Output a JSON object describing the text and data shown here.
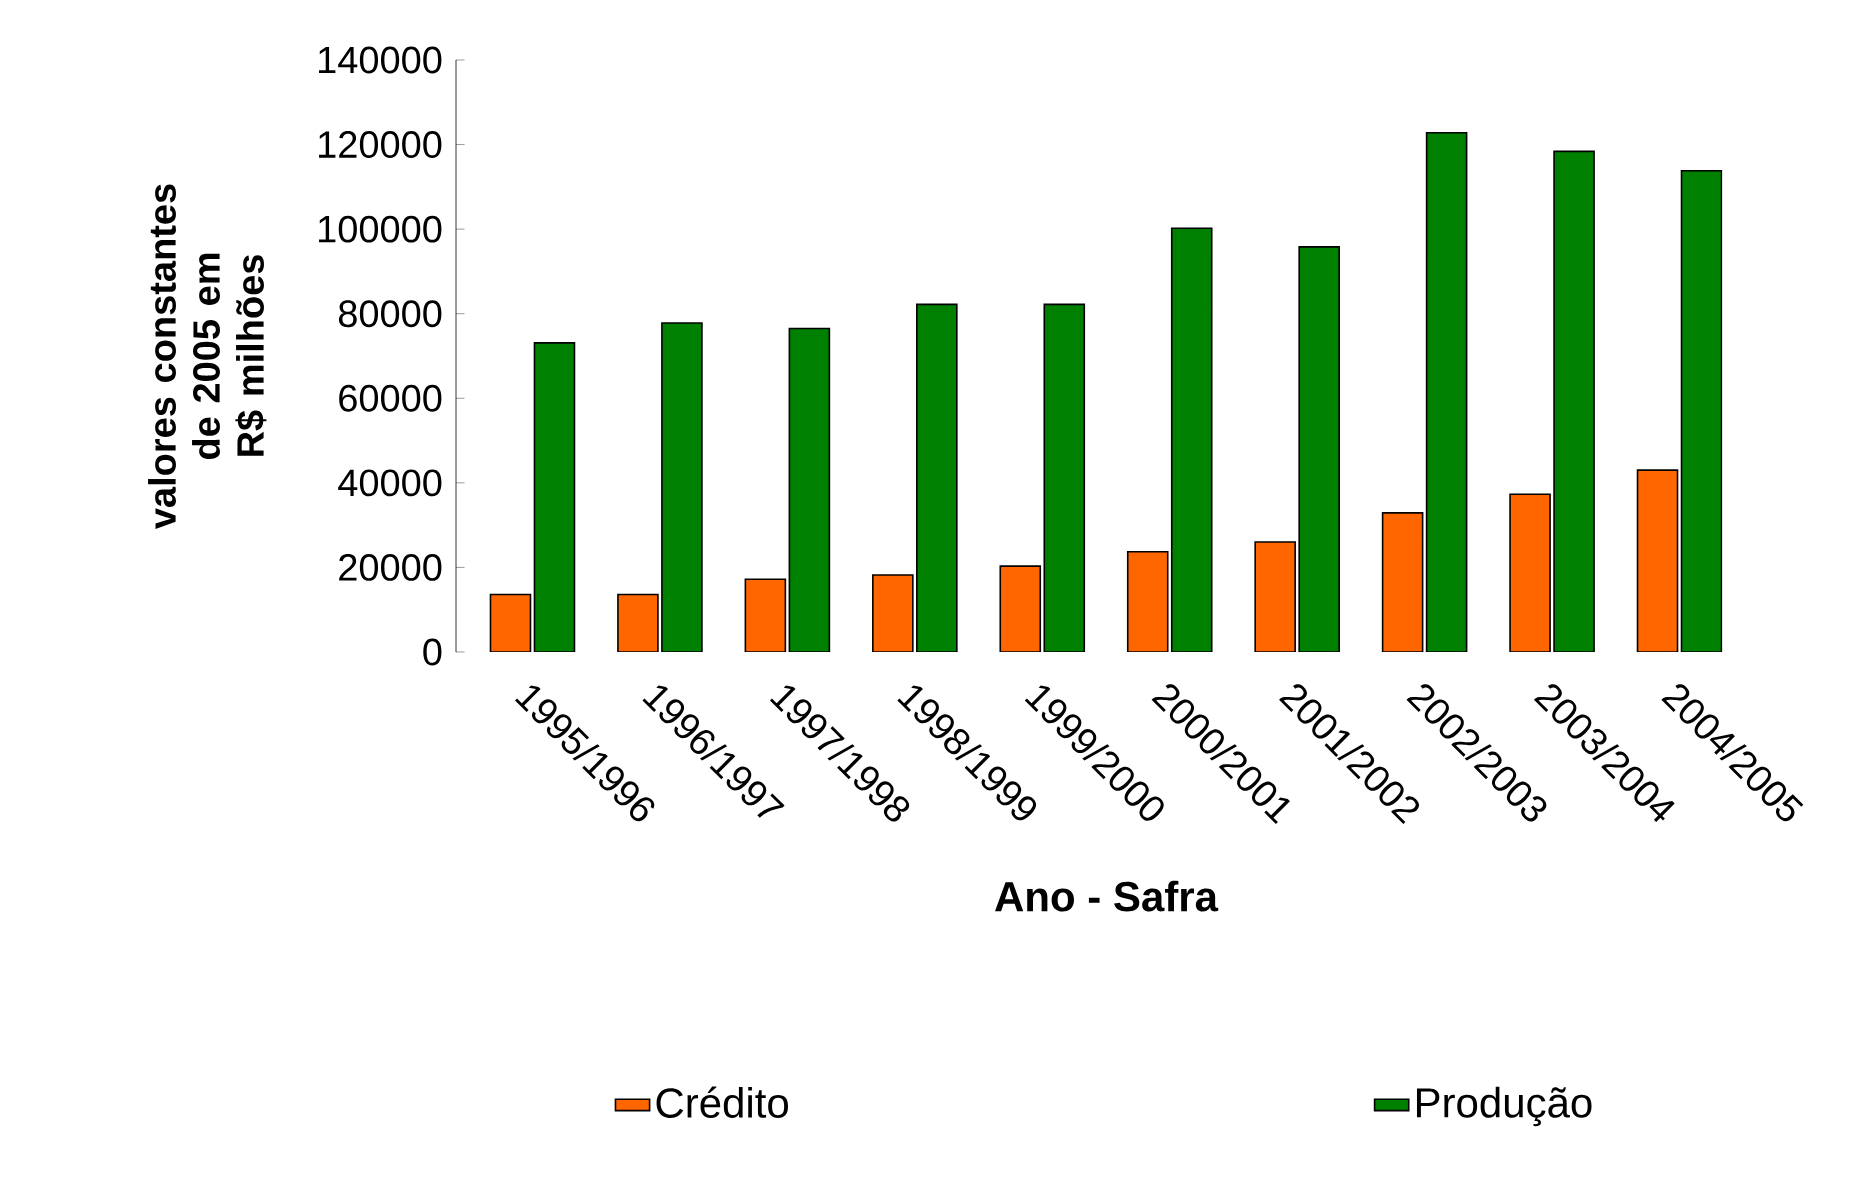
{
  "chart_data": {
    "type": "bar",
    "xlabel": "Ano - Safra",
    "ylabel": "valores constantes de 2005 em R$ milhões",
    "categories": [
      "1995/1996",
      "1996/1997",
      "1997/1998",
      "1998/1999",
      "1999/2000",
      "2000/2001",
      "2001/2002",
      "2002/2003",
      "2003/2004",
      "2004/2005"
    ],
    "series": [
      {
        "name": "Crédito",
        "color": "#ff6600",
        "values": [
          13600,
          13600,
          17200,
          18200,
          20300,
          23700,
          26000,
          32900,
          37300,
          43000
        ]
      },
      {
        "name": "Produção",
        "color": "#008000",
        "values": [
          73100,
          77800,
          76500,
          82200,
          82200,
          100200,
          95800,
          122800,
          118400,
          113800
        ]
      }
    ],
    "ylim": [
      0,
      140000
    ],
    "yticks": [
      0,
      20000,
      40000,
      60000,
      80000,
      100000,
      120000,
      140000
    ],
    "grid": false,
    "legend": "bottom"
  }
}
